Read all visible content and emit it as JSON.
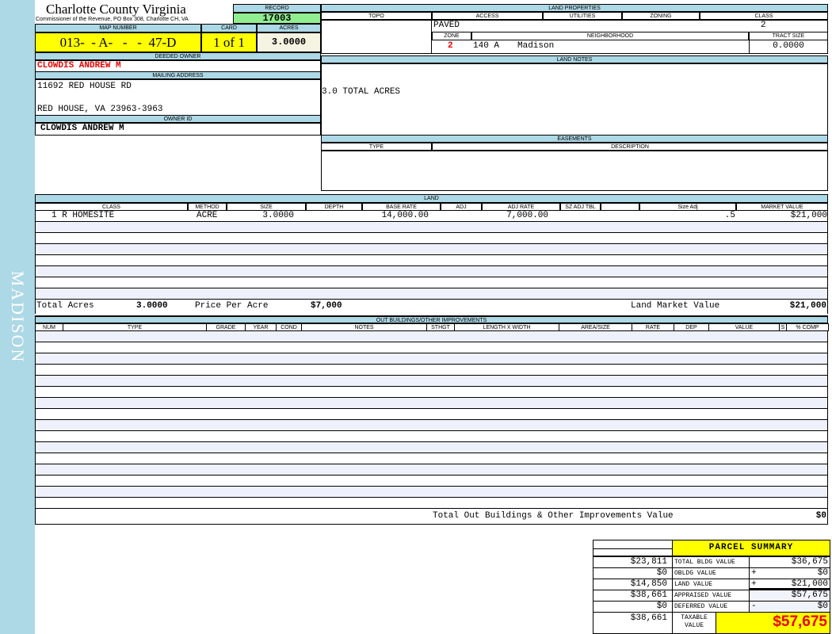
{
  "sidebar": {
    "label": "MADISON",
    "color": "#add8e6"
  },
  "header": {
    "county": "Charlotte County Virginia",
    "office": "Commissioner of the Revenue, PO Box 308, Charlotte CH, VA"
  },
  "record": {
    "label": "RECORD",
    "value": "17003"
  },
  "map": {
    "label": "MAP NUMBER",
    "value": "013-  - A-   -   -  47-D"
  },
  "card": {
    "label": "CARD",
    "value": "1 of 1"
  },
  "acres": {
    "label": "ACRES",
    "value": "3.0000"
  },
  "owner": {
    "deeded_label": "DEEDED OWNER",
    "deeded": "CLOWDIS ANDREW M",
    "mailing_label": "MAILING ADDRESS",
    "address1": "11692 RED HOUSE RD",
    "address2": "RED HOUSE, VA 23963-3963",
    "id_label": "OWNER ID",
    "id": "CLOWDIS ANDREW M"
  },
  "land_properties": {
    "title": "LAND PROPERTIES",
    "topo_label": "TOPO",
    "access_label": "ACCESS",
    "utilities_label": "UTILITIES",
    "zoning_label": "ZONING",
    "class_label": "CLASS",
    "access": "PAVED",
    "class": "2",
    "zone_label": "ZONE",
    "neighborhood_label": "NEIGHBORHOOD",
    "tract_label": "TRACT SIZE",
    "zone": "2",
    "neighborhood_code": "140 A",
    "neighborhood": "Madison",
    "tract": "0.0000"
  },
  "land_notes": {
    "title": "LAND NOTES",
    "text": "3.0 TOTAL ACRES"
  },
  "easements": {
    "title": "EASEMENTS",
    "type_label": "TYPE",
    "desc_label": "DESCRIPTION"
  },
  "land": {
    "title": "LAND",
    "columns": [
      "CLASS",
      "METHOD",
      "SIZE",
      "DEPTH",
      "BASE RATE",
      "ADJ",
      "ADJ RATE",
      "SZ ADJ TBL",
      "",
      "Size Adj",
      "MARKET VALUE"
    ],
    "rows": [
      [
        "1 R HOMESITE",
        "ACRE",
        "3.0000",
        "",
        "14,000.00",
        "",
        "7,000.00",
        "",
        "",
        ".5",
        "$21,000"
      ]
    ],
    "total_acres_label": "Total Acres",
    "total_acres": "3.0000",
    "ppa_label": "Price Per Acre",
    "ppa": "$7,000",
    "market_label": "Land Market Value",
    "market": "$21,000"
  },
  "outbuildings": {
    "title": "OUT BUILDINGS/OTHER IMPROVEMENTS",
    "columns": [
      "NUM",
      "TYPE",
      "GRADE",
      "YEAR",
      "COND",
      "NOTES",
      "STHGT",
      "LENGTH X WIDTH",
      "AREA/SIZE",
      "RATE",
      "DEP",
      "VALUE",
      "S",
      "% COMP"
    ],
    "total_label": "Total Out Buildings & Other Improvements Value",
    "total": "$0"
  },
  "summary": {
    "title": "PARCEL SUMMARY",
    "rows": [
      {
        "prior": "$23,811",
        "label": "TOTAL BLDG VALUE",
        "op": "",
        "value": "$36,675"
      },
      {
        "prior": "$0",
        "label": "OBLDG VALUE",
        "op": "+",
        "value": "$0"
      },
      {
        "prior": "$14,850",
        "label": "LAND VALUE",
        "op": "+",
        "value": "$21,000"
      },
      {
        "prior": "$38,661",
        "label": "APPRAISED VALUE",
        "op": "",
        "value": "$57,675"
      },
      {
        "prior": "$0",
        "label": "DEFERRED VALUE",
        "op": "-",
        "value": "$0"
      }
    ],
    "taxable_prior": "$38,661",
    "taxable_label": "TAXABLE VALUE",
    "taxable": "$57,675"
  },
  "colors": {
    "header_blue": "#add8e6",
    "yellow": "#ffff00",
    "green": "#90ee90",
    "red": "#e00000"
  }
}
